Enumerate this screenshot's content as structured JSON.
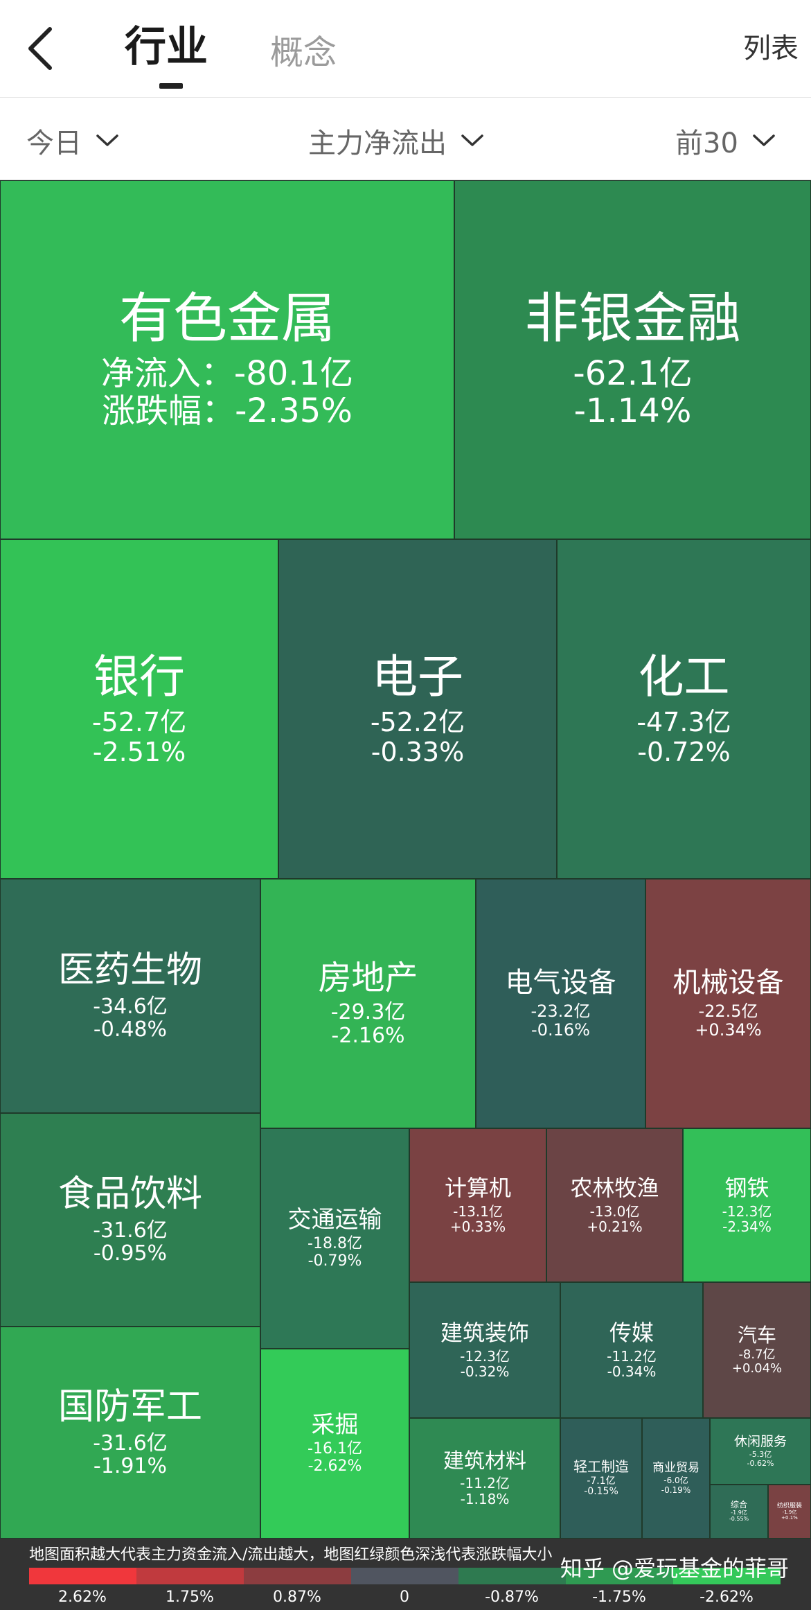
{
  "header": {
    "tab_active": "行业",
    "tab_inactive": "概念",
    "list_link": "列表"
  },
  "filters": {
    "period": "今日",
    "metric": "主力净流出",
    "top": "前30"
  },
  "sectors": [
    {
      "name": "有色金属",
      "flow": "净流入：-80.1亿",
      "chg": "涨跌幅：-2.35%",
      "color": "#33bb58"
    },
    {
      "name": "非银金融",
      "flow": "-62.1亿",
      "chg": "-1.14%",
      "color": "#2d8a51"
    },
    {
      "name": "银行",
      "flow": "-52.7亿",
      "chg": "-2.51%",
      "color": "#33c256"
    },
    {
      "name": "电子",
      "flow": "-52.2亿",
      "chg": "-0.33%",
      "color": "#2f6455"
    },
    {
      "name": "化工",
      "flow": "-47.3亿",
      "chg": "-0.72%",
      "color": "#2e7755"
    },
    {
      "name": "医药生物",
      "flow": "-34.6亿",
      "chg": "-0.48%",
      "color": "#2f6c56"
    },
    {
      "name": "房地产",
      "flow": "-29.3亿",
      "chg": "-2.16%",
      "color": "#33b455"
    },
    {
      "name": "电气设备",
      "flow": "-23.2亿",
      "chg": "-0.16%",
      "color": "#2f5e59"
    },
    {
      "name": "机械设备",
      "flow": "-22.5亿",
      "chg": "+0.34%",
      "color": "#7c4243"
    },
    {
      "name": "食品饮料",
      "flow": "-31.6亿",
      "chg": "-0.95%",
      "color": "#2e7f51"
    },
    {
      "name": "国防军工",
      "flow": "-31.6亿",
      "chg": "-1.91%",
      "color": "#31a853"
    },
    {
      "name": "交通运输",
      "flow": "-18.8亿",
      "chg": "-0.79%",
      "color": "#2e7856"
    },
    {
      "name": "采掘",
      "flow": "-16.1亿",
      "chg": "-2.62%",
      "color": "#33cb58"
    },
    {
      "name": "计算机",
      "flow": "-13.1亿",
      "chg": "+0.33%",
      "color": "#7a4243"
    },
    {
      "name": "农林牧渔",
      "flow": "-13.0亿",
      "chg": "+0.21%",
      "color": "#6b4445"
    },
    {
      "name": "钢铁",
      "flow": "-12.3亿",
      "chg": "-2.34%",
      "color": "#33bf58"
    },
    {
      "name": "建筑装饰",
      "flow": "-12.3亿",
      "chg": "-0.32%",
      "color": "#2f6557"
    },
    {
      "name": "传媒",
      "flow": "-11.2亿",
      "chg": "-0.34%",
      "color": "#2f6557"
    },
    {
      "name": "汽车",
      "flow": "-8.7亿",
      "chg": "+0.04%",
      "color": "#5e4747"
    },
    {
      "name": "建筑材料",
      "flow": "-11.2亿",
      "chg": "-1.18%",
      "color": "#2f8a53"
    },
    {
      "name": "轻工制造",
      "flow": "-7.1亿",
      "chg": "-0.15%",
      "color": "#2f5e59"
    },
    {
      "name": "商业贸易",
      "flow": "-6.0亿",
      "chg": "-0.19%",
      "color": "#2f5e59"
    },
    {
      "name": "休闲服务",
      "flow": "-5.3亿",
      "chg": "-0.62%",
      "color": "#2e7656"
    },
    {
      "name": "综合",
      "flow": "-1.9亿",
      "chg": "-0.55%",
      "color": "#2f6c56"
    },
    {
      "name": "纺织服装",
      "flow": "-1.9亿",
      "chg": "+0.1%",
      "color": "#7a4243"
    }
  ],
  "legend": {
    "note": "地图面积越大代表主力资金流入/流出越大，地图红绿颜色深浅代表涨跌幅大小",
    "colors": [
      "#f0373c",
      "#c03a3e",
      "#8c3d40",
      "#505560",
      "#2e7a50",
      "#2f9a52",
      "#34c85a"
    ],
    "labels": [
      "2.62%",
      "1.75%",
      "0.87%",
      "0",
      "-0.87%",
      "-1.75%",
      "-2.62%"
    ]
  },
  "watermark": "知乎 @爱玩基金的菲哥"
}
